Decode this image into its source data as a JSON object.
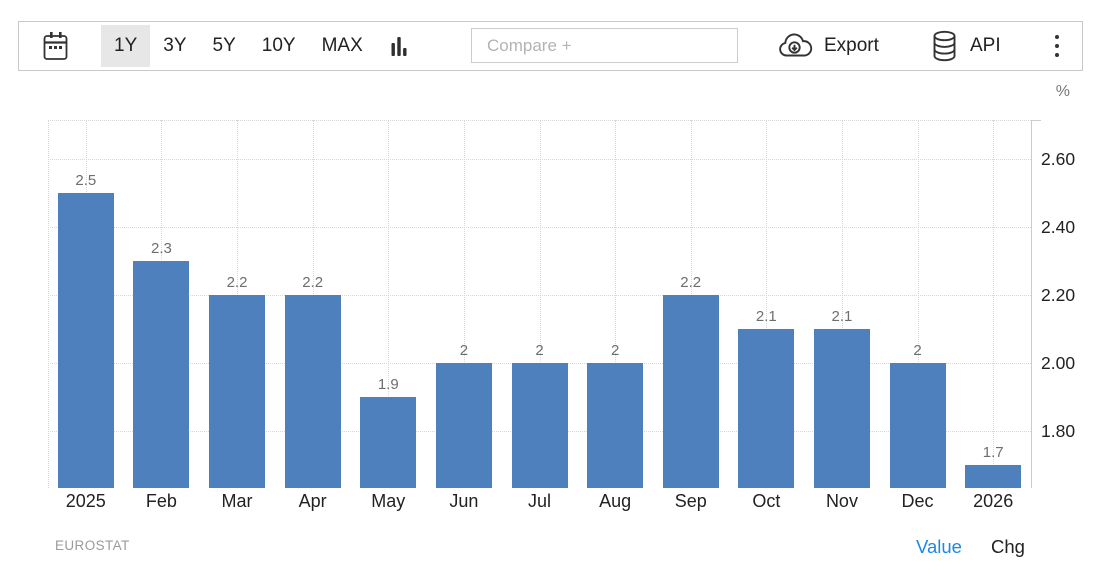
{
  "toolbar": {
    "range_buttons": [
      {
        "label": "1Y",
        "selected": true
      },
      {
        "label": "3Y",
        "selected": false
      },
      {
        "label": "5Y",
        "selected": false
      },
      {
        "label": "10Y",
        "selected": false
      },
      {
        "label": "MAX",
        "selected": false
      }
    ],
    "compare_placeholder": "Compare +",
    "export_label": "Export",
    "api_label": "API"
  },
  "footer": {
    "value_label": "Value",
    "chg_label": "Chg"
  },
  "chart_data": {
    "type": "bar",
    "title": "",
    "categories": [
      "2025",
      "Feb",
      "Mar",
      "Apr",
      "May",
      "Jun",
      "Jul",
      "Aug",
      "Sep",
      "Oct",
      "Nov",
      "Dec",
      "2026"
    ],
    "values": [
      2.5,
      2.3,
      2.2,
      2.2,
      1.9,
      2.0,
      2.0,
      2.0,
      2.2,
      2.1,
      2.1,
      2.0,
      1.7
    ],
    "value_labels": [
      "2.5",
      "2.3",
      "2.2",
      "2.2",
      "1.9",
      "2",
      "2",
      "2",
      "2.2",
      "2.1",
      "2.1",
      "2",
      "1.7"
    ],
    "xlabel": "",
    "ylabel": "%",
    "ylim": [
      1.63,
      2.71
    ],
    "yticks": [
      {
        "value": 2.6,
        "label": "2.60"
      },
      {
        "value": 2.4,
        "label": "2.40"
      },
      {
        "value": 2.2,
        "label": "2.20"
      },
      {
        "value": 2.0,
        "label": "2.00"
      },
      {
        "value": 1.8,
        "label": "1.80"
      }
    ],
    "grid": true,
    "legend": "none",
    "yaxis_position": "right",
    "source": "EUROSTAT"
  },
  "colors": {
    "bar": "#4e80bd",
    "accent_blue": "#1e88e5",
    "selected_bg": "#e7e7e7",
    "grid": "#d6d6d6",
    "axis": "#cccccc",
    "value_label": "#6e6e6e",
    "muted": "#9b9b9b"
  }
}
